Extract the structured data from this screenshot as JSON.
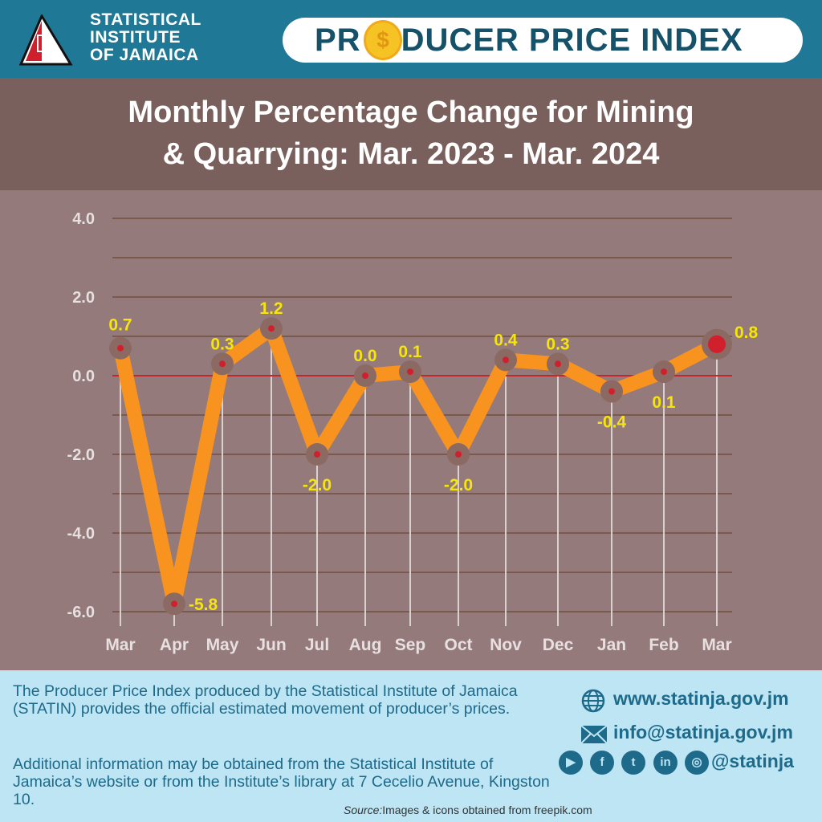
{
  "header": {
    "org_lines": [
      "STATISTICAL",
      "INSTITUTE",
      "OF JAMAICA"
    ],
    "banner_pre": "PR",
    "banner_post": "DUCER PRICE INDEX",
    "coin_symbol": "$"
  },
  "title_lines": [
    "Monthly Percentage Change for Mining",
    "& Quarrying: Mar. 2023 - Mar. 2024"
  ],
  "chart_data": {
    "type": "line",
    "title": "Monthly Percentage Change for Mining & Quarrying: Mar. 2023 - Mar. 2024",
    "categories": [
      "Mar",
      "Apr",
      "May",
      "Jun",
      "Jul",
      "Aug",
      "Sep",
      "Oct",
      "Nov",
      "Dec",
      "Jan",
      "Feb",
      "Mar"
    ],
    "values": [
      0.7,
      -5.8,
      0.3,
      1.2,
      -2.0,
      0.0,
      0.1,
      -2.0,
      0.4,
      0.3,
      -0.4,
      0.1,
      0.8
    ],
    "labels": [
      "0.7",
      "-5.8",
      "0.3",
      "1.2",
      "-2.0",
      "0.0",
      "0.1",
      "-2.0",
      "0.4",
      "0.3",
      "-0.4",
      "0.1",
      "0.8"
    ],
    "label_pos": [
      "above",
      "right",
      "above",
      "above",
      "below",
      "above",
      "above",
      "below",
      "above",
      "above",
      "below",
      "below",
      "right"
    ],
    "yticks": [
      "4.0",
      "2.0",
      "0.0",
      "-2.0",
      "-4.0",
      "-6.0"
    ],
    "ylim": [
      -6,
      4
    ],
    "grid": true,
    "colors": {
      "line": "#f7931e",
      "marker": "#8a6a63",
      "dot": "#d0202e",
      "label": "#f5e50a",
      "zero": "#c0282d"
    }
  },
  "footer": {
    "text1": "The Producer Price Index produced by the Statistical Institute of Jamaica (STATIN) provides the official estimated movement of producer’s prices.",
    "text2": "Additional information may be obtained from the Statistical Institute of Jamaica’s website or from the  Institute’s library at 7 Cecelio Avenue, Kingston 10.",
    "website": "www.statinja.gov.jm",
    "email": "info@statinja.gov.jm",
    "handle": "@statinja",
    "source_label": "Source:",
    "source_text": "Images & icons obtained from freepik.com"
  }
}
